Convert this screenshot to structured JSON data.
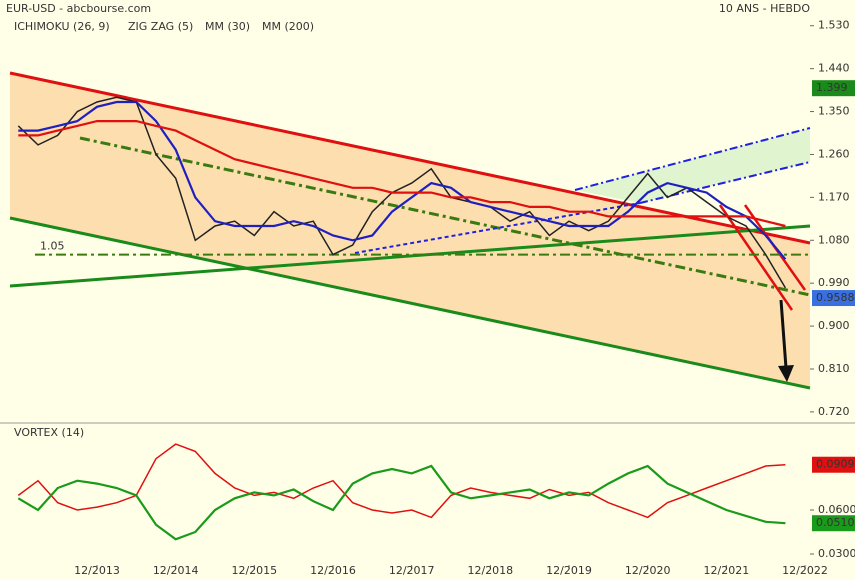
{
  "header": {
    "symbol": "EUR-USD - abcbourse.com",
    "period": "10 ANS - HEBDO"
  },
  "chart_data": [
    {
      "type": "line",
      "legend": [
        {
          "name": "ICHIMOKU (26, 9)",
          "color": "#e00000"
        },
        {
          "name": "ZIG ZAG (5)",
          "color": "#000000"
        },
        {
          "name": "MM (30)",
          "color": "#0000cc"
        },
        {
          "name": "MM (200)",
          "color": "#e00000"
        }
      ],
      "x": [
        "12/2012",
        "03/2013",
        "06/2013",
        "09/2013",
        "12/2013",
        "03/2014",
        "06/2014",
        "09/2014",
        "12/2014",
        "03/2015",
        "06/2015",
        "09/2015",
        "12/2015",
        "03/2016",
        "06/2016",
        "09/2016",
        "12/2016",
        "03/2017",
        "06/2017",
        "09/2017",
        "12/2017",
        "03/2018",
        "06/2018",
        "09/2018",
        "12/2018",
        "03/2019",
        "06/2019",
        "09/2019",
        "12/2019",
        "03/2020",
        "06/2020",
        "09/2020",
        "12/2020",
        "03/2021",
        "06/2021",
        "09/2021",
        "12/2021",
        "03/2022",
        "06/2022",
        "09/2022"
      ],
      "series": [
        {
          "color": "#222222",
          "values": [
            1.32,
            1.28,
            1.3,
            1.35,
            1.37,
            1.38,
            1.37,
            1.26,
            1.21,
            1.08,
            1.11,
            1.12,
            1.09,
            1.14,
            1.11,
            1.12,
            1.05,
            1.07,
            1.14,
            1.18,
            1.2,
            1.23,
            1.17,
            1.16,
            1.15,
            1.12,
            1.14,
            1.09,
            1.12,
            1.1,
            1.12,
            1.17,
            1.22,
            1.17,
            1.19,
            1.16,
            1.13,
            1.11,
            1.05,
            0.98
          ]
        },
        {
          "color": "#2020c0",
          "values": [
            1.31,
            1.31,
            1.32,
            1.33,
            1.36,
            1.37,
            1.37,
            1.33,
            1.27,
            1.17,
            1.12,
            1.11,
            1.11,
            1.11,
            1.12,
            1.11,
            1.09,
            1.08,
            1.09,
            1.14,
            1.17,
            1.2,
            1.19,
            1.16,
            1.15,
            1.14,
            1.13,
            1.12,
            1.11,
            1.11,
            1.11,
            1.14,
            1.18,
            1.2,
            1.19,
            1.18,
            1.15,
            1.13,
            1.09,
            1.04
          ]
        },
        {
          "color": "#e01010",
          "values": [
            1.3,
            1.3,
            1.31,
            1.32,
            1.33,
            1.33,
            1.33,
            1.32,
            1.31,
            1.29,
            1.27,
            1.25,
            1.24,
            1.23,
            1.22,
            1.21,
            1.2,
            1.19,
            1.19,
            1.18,
            1.18,
            1.18,
            1.17,
            1.17,
            1.16,
            1.16,
            1.15,
            1.15,
            1.14,
            1.14,
            1.13,
            1.13,
            1.13,
            1.13,
            1.13,
            1.13,
            1.13,
            1.13,
            1.12,
            1.11
          ]
        }
      ],
      "hline": 1.05,
      "markers": [
        {
          "value": 1.399,
          "color": "#1a8a1a"
        },
        {
          "value": 0.9588,
          "color": "#3a6fe0"
        }
      ],
      "ylim": [
        0.703,
        1.584
      ],
      "yticks": [
        {
          "value": 0.72,
          "label": "0.720"
        },
        {
          "value": 0.81,
          "label": "0.810"
        },
        {
          "value": 0.9,
          "label": "0.900"
        },
        {
          "value": 0.99,
          "label": "0.990"
        },
        {
          "value": 1.08,
          "label": "1.080"
        },
        {
          "value": 1.17,
          "label": "1.170"
        },
        {
          "value": 1.26,
          "label": "1.260"
        },
        {
          "value": 1.35,
          "label": "1.350"
        },
        {
          "value": 1.44,
          "label": "1.440"
        },
        {
          "value": 1.53,
          "label": "1.530"
        }
      ],
      "xticks": [
        "12/2013",
        "12/2014",
        "12/2015",
        "12/2016",
        "12/2017",
        "12/2018",
        "12/2019",
        "12/2020",
        "12/2021",
        "12/2022"
      ]
    },
    {
      "type": "line",
      "title": "VORTEX (14)",
      "x": [
        "12/2012",
        "03/2013",
        "06/2013",
        "09/2013",
        "12/2013",
        "03/2014",
        "06/2014",
        "09/2014",
        "12/2014",
        "03/2015",
        "06/2015",
        "09/2015",
        "12/2015",
        "03/2016",
        "06/2016",
        "09/2016",
        "12/2016",
        "03/2017",
        "06/2017",
        "09/2017",
        "12/2017",
        "03/2018",
        "06/2018",
        "09/2018",
        "12/2018",
        "03/2019",
        "06/2019",
        "09/2019",
        "12/2019",
        "03/2020",
        "06/2020",
        "09/2020",
        "12/2020",
        "03/2021",
        "06/2021",
        "09/2021",
        "12/2021",
        "03/2022",
        "06/2022",
        "09/2022"
      ],
      "series": [
        {
          "color": "#e01010",
          "values": [
            0.07,
            0.08,
            0.065,
            0.06,
            0.062,
            0.065,
            0.07,
            0.095,
            0.105,
            0.1,
            0.085,
            0.075,
            0.07,
            0.072,
            0.068,
            0.075,
            0.08,
            0.065,
            0.06,
            0.058,
            0.06,
            0.055,
            0.07,
            0.075,
            0.072,
            0.07,
            0.068,
            0.074,
            0.07,
            0.072,
            0.065,
            0.06,
            0.055,
            0.065,
            0.07,
            0.075,
            0.08,
            0.085,
            0.09,
            0.0909
          ]
        },
        {
          "color": "#1a9a1a",
          "values": [
            0.068,
            0.06,
            0.075,
            0.08,
            0.078,
            0.075,
            0.07,
            0.05,
            0.04,
            0.045,
            0.06,
            0.068,
            0.072,
            0.07,
            0.074,
            0.066,
            0.06,
            0.078,
            0.085,
            0.088,
            0.085,
            0.09,
            0.072,
            0.068,
            0.07,
            0.072,
            0.074,
            0.068,
            0.072,
            0.07,
            0.078,
            0.085,
            0.09,
            0.078,
            0.072,
            0.066,
            0.06,
            0.056,
            0.052,
            0.051
          ]
        }
      ],
      "markers": [
        {
          "value": 0.0909,
          "color": "#e01010"
        },
        {
          "value": {
            "value": 0.051,
            "label": "0.0510"
          },
          "color": "#1a9a1a"
        }
      ],
      "ylim": [
        0.0225,
        0.118
      ],
      "yticks": [
        {
          "value": 0.03,
          "label": "0.0300"
        },
        {
          "value": 0.06,
          "label": "0.0600"
        }
      ]
    }
  ]
}
